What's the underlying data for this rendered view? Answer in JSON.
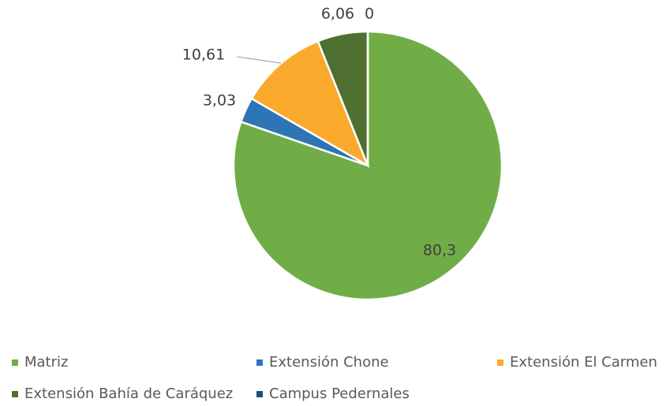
{
  "chart_data": {
    "type": "pie",
    "categories": [
      "Matriz",
      "Extensión Chone",
      "Extensión El Carmen",
      "Extensión Bahía de Caráquez",
      "Campus Pedernales"
    ],
    "values": [
      80.3,
      3.03,
      10.61,
      6.06,
      0
    ],
    "value_labels": [
      "80,3",
      "3,03",
      "10,61",
      "6,06",
      "0"
    ],
    "colors": [
      "#70ad47",
      "#2e75b6",
      "#fba92c",
      "#4f6f30",
      "#1f4e79"
    ],
    "legend": "bottom"
  }
}
